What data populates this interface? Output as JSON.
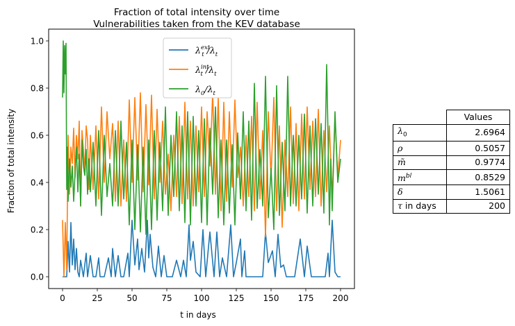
{
  "chart_data": {
    "type": "line",
    "title": "Fraction of total intensity over time",
    "subtitle": "Vulnerabilities taken from the KEV database",
    "xlabel": "t in days",
    "ylabel": "Fraction of total intensity",
    "xlim": [
      -10,
      210
    ],
    "ylim": [
      -0.05,
      1.05
    ],
    "xticks": [
      0,
      25,
      50,
      75,
      100,
      125,
      150,
      175,
      200
    ],
    "xtick_labels": [
      "0",
      "25",
      "50",
      "75",
      "100",
      "125",
      "150",
      "175",
      "200"
    ],
    "yticks": [
      0.0,
      0.2,
      0.4,
      0.6,
      0.8,
      1.0
    ],
    "ytick_labels": [
      "0.0",
      "0.2",
      "0.4",
      "0.6",
      "0.8",
      "1.0"
    ],
    "legend_position": "top-center",
    "series": [
      {
        "name": "λ_t^ext/λ_t",
        "legend_base": "λ",
        "legend_sup": "ext",
        "legend_tail": "/λ",
        "color": "#1f77b4",
        "x": [
          0,
          3,
          4,
          5,
          6,
          7,
          8,
          9,
          10,
          11,
          12,
          13,
          15,
          17,
          18,
          20,
          22,
          24,
          26,
          27,
          29,
          30,
          33,
          35,
          36,
          38,
          40,
          42,
          44,
          47,
          48,
          50,
          52,
          54,
          55,
          57,
          59,
          61,
          62,
          63,
          65,
          67,
          69,
          71,
          73,
          75,
          77,
          79,
          82,
          85,
          87,
          89,
          91,
          92,
          94,
          96,
          99,
          101,
          103,
          106,
          109,
          111,
          113,
          115,
          118,
          121,
          123,
          125,
          128,
          129,
          131,
          132,
          134,
          136,
          138,
          141,
          144,
          146,
          148,
          151,
          153,
          155,
          157,
          159,
          161,
          162,
          164,
          167,
          171,
          174,
          176,
          179,
          182,
          186,
          189,
          191,
          192,
          194,
          196,
          198,
          200
        ],
        "y": [
          0.0,
          0.0,
          0.15,
          0.02,
          0.23,
          0.05,
          0.16,
          0.03,
          0.12,
          0.02,
          0.0,
          0.07,
          0.0,
          0.1,
          0.0,
          0.09,
          0.0,
          0.0,
          0.08,
          0.0,
          0.0,
          0.0,
          0.08,
          0.0,
          0.12,
          0.0,
          0.09,
          0.0,
          0.0,
          0.1,
          0.0,
          0.24,
          0.05,
          0.16,
          0.03,
          0.12,
          0.02,
          0.24,
          0.08,
          0.18,
          0.04,
          0.0,
          0.13,
          0.0,
          0.09,
          0.0,
          0.0,
          0.0,
          0.07,
          0.0,
          0.07,
          0.0,
          0.22,
          0.07,
          0.15,
          0.02,
          0.0,
          0.2,
          0.0,
          0.19,
          0.0,
          0.19,
          0.0,
          0.08,
          0.0,
          0.22,
          0.0,
          0.06,
          0.16,
          0.0,
          0.11,
          0.0,
          0.0,
          0.0,
          0.0,
          0.0,
          0.0,
          0.19,
          0.06,
          0.11,
          0.0,
          0.18,
          0.04,
          0.05,
          0.0,
          0.0,
          0.0,
          0.0,
          0.16,
          0.0,
          0.13,
          0.0,
          0.0,
          0.0,
          0.0,
          0.1,
          0.0,
          0.24,
          0.02,
          0.0,
          0.0
        ]
      },
      {
        "name": "λ_t^int/λ_t",
        "legend_base": "λ",
        "legend_sup": "int",
        "legend_tail": "/λ",
        "color": "#ff7f0e",
        "x": [
          0,
          1,
          2,
          3,
          4,
          5,
          6,
          7,
          8,
          9,
          10,
          11,
          12,
          13,
          14,
          15,
          16,
          17,
          18,
          19,
          20,
          22,
          24,
          26,
          28,
          30,
          32,
          34,
          36,
          38,
          40,
          42,
          44,
          46,
          48,
          50,
          52,
          54,
          56,
          58,
          60,
          62,
          64,
          66,
          68,
          70,
          72,
          74,
          76,
          78,
          80,
          82,
          84,
          86,
          88,
          90,
          92,
          94,
          96,
          98,
          100,
          102,
          104,
          106,
          108,
          110,
          112,
          114,
          116,
          118,
          120,
          122,
          124,
          126,
          128,
          130,
          132,
          134,
          136,
          138,
          140,
          142,
          144,
          146,
          148,
          150,
          152,
          154,
          156,
          158,
          160,
          162,
          164,
          166,
          168,
          170,
          172,
          174,
          176,
          178,
          180,
          182,
          184,
          186,
          188,
          190,
          192,
          194,
          196,
          198,
          200
        ],
        "y": [
          0.24,
          0.0,
          0.23,
          0.03,
          0.6,
          0.35,
          0.55,
          0.48,
          0.63,
          0.42,
          0.6,
          0.5,
          0.66,
          0.3,
          0.62,
          0.54,
          0.45,
          0.64,
          0.58,
          0.37,
          0.6,
          0.37,
          0.64,
          0.33,
          0.72,
          0.4,
          0.7,
          0.5,
          0.65,
          0.32,
          0.66,
          0.3,
          0.58,
          0.32,
          0.75,
          0.4,
          0.76,
          0.41,
          0.78,
          0.36,
          0.73,
          0.39,
          0.77,
          0.33,
          0.71,
          0.4,
          0.66,
          0.35,
          0.52,
          0.28,
          0.6,
          0.34,
          0.68,
          0.31,
          0.74,
          0.33,
          0.66,
          0.3,
          0.64,
          0.36,
          0.72,
          0.34,
          0.7,
          0.47,
          0.78,
          0.35,
          0.76,
          0.28,
          0.74,
          0.32,
          0.7,
          0.38,
          0.75,
          0.42,
          0.55,
          0.3,
          0.6,
          0.34,
          0.68,
          0.28,
          0.74,
          0.33,
          0.62,
          0.17,
          0.7,
          0.42,
          0.76,
          0.28,
          0.64,
          0.21,
          0.58,
          0.34,
          0.72,
          0.31,
          0.65,
          0.28,
          0.69,
          0.33,
          0.72,
          0.37,
          0.66,
          0.34,
          0.71,
          0.3,
          0.62,
          0.36,
          0.64,
          0.33,
          0.68,
          0.42,
          0.58
        ]
      },
      {
        "name": "λ_0/λ_t",
        "legend_base": "λ",
        "legend_sub": "0",
        "legend_tail": "/λ",
        "color": "#2ca02c",
        "x": [
          0,
          0.5,
          1,
          1.5,
          2,
          2.5,
          3,
          3.5,
          4,
          5,
          6,
          7,
          8,
          9,
          10,
          11,
          12,
          13,
          14,
          15,
          16,
          17,
          18,
          19,
          20,
          22,
          24,
          26,
          28,
          30,
          32,
          34,
          36,
          38,
          40,
          42,
          44,
          46,
          48,
          50,
          52,
          54,
          56,
          58,
          60,
          62,
          64,
          66,
          68,
          70,
          72,
          74,
          76,
          78,
          80,
          82,
          84,
          86,
          88,
          90,
          92,
          94,
          96,
          98,
          100,
          102,
          104,
          106,
          108,
          110,
          112,
          114,
          116,
          118,
          120,
          122,
          124,
          126,
          128,
          130,
          132,
          134,
          136,
          138,
          140,
          142,
          144,
          146,
          148,
          150,
          152,
          154,
          156,
          158,
          160,
          162,
          164,
          166,
          168,
          170,
          172,
          174,
          176,
          178,
          180,
          182,
          184,
          186,
          188,
          190,
          191,
          192,
          193,
          194,
          196,
          198,
          200
        ],
        "y": [
          0.76,
          1.0,
          0.78,
          0.98,
          0.86,
          0.99,
          0.37,
          0.55,
          0.32,
          0.5,
          0.38,
          0.47,
          0.32,
          0.44,
          0.55,
          0.36,
          0.52,
          0.3,
          0.58,
          0.47,
          0.43,
          0.54,
          0.35,
          0.5,
          0.36,
          0.57,
          0.3,
          0.62,
          0.26,
          0.6,
          0.34,
          0.48,
          0.3,
          0.62,
          0.3,
          0.66,
          0.33,
          0.57,
          0.22,
          0.58,
          0.2,
          0.56,
          0.19,
          0.55,
          0.18,
          0.58,
          0.2,
          0.62,
          0.24,
          0.57,
          0.28,
          0.72,
          0.26,
          0.6,
          0.34,
          0.7,
          0.28,
          0.64,
          0.23,
          0.7,
          0.22,
          0.68,
          0.3,
          0.62,
          0.23,
          0.67,
          0.22,
          0.63,
          0.35,
          0.72,
          0.25,
          0.58,
          0.22,
          0.58,
          0.27,
          0.56,
          0.22,
          0.61,
          0.33,
          0.7,
          0.28,
          0.66,
          0.24,
          0.82,
          0.29,
          0.54,
          0.3,
          0.85,
          0.25,
          0.46,
          0.2,
          0.81,
          0.26,
          0.57,
          0.28,
          0.85,
          0.3,
          0.6,
          0.3,
          0.6,
          0.33,
          0.69,
          0.27,
          0.64,
          0.3,
          0.67,
          0.35,
          0.65,
          0.27,
          0.9,
          0.6,
          0.22,
          0.5,
          0.28,
          0.7,
          0.4,
          0.5
        ]
      }
    ]
  },
  "table": {
    "header": "Values",
    "rows": [
      {
        "label_base": "λ",
        "label_sub": "0",
        "label_sup": "",
        "value": "2.6964"
      },
      {
        "label_base": "ρ",
        "label_sub": "",
        "label_sup": "",
        "value": "0.5057"
      },
      {
        "label_base": "m̃",
        "label_sub": "",
        "label_sup": "",
        "value": "0.9774"
      },
      {
        "label_base": "m",
        "label_sub": "",
        "label_sup": "bl",
        "value": "0.8529"
      },
      {
        "label_base": "δ",
        "label_sub": "",
        "label_sup": "",
        "value": "1.5061"
      },
      {
        "label_base": "τ",
        "label_sub": "",
        "label_sup": "",
        "label_text": " in days",
        "value": "200"
      }
    ]
  }
}
